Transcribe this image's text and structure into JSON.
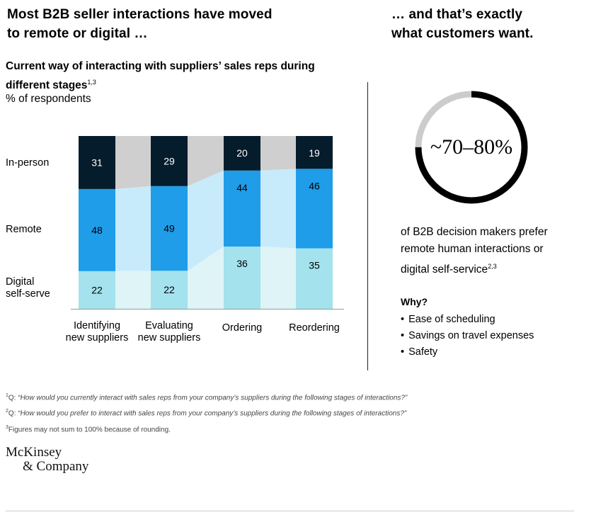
{
  "headline_left": [
    "Most B2B seller interactions have moved",
    "to remote or digital …"
  ],
  "headline_right": [
    "… and that’s exactly",
    "what customers want."
  ],
  "chart_data": {
    "type": "bar",
    "stacked": true,
    "title": "Current way of interacting with suppliers’ sales reps during different stages",
    "title_sup": "1,3",
    "subtitle": "% of respondents",
    "categories": [
      "Identifying new suppliers",
      "Evaluating new suppliers",
      "Ordering",
      "Reordering"
    ],
    "category_lines": [
      [
        "Identifying",
        "new suppliers"
      ],
      [
        "Evaluating",
        "new suppliers"
      ],
      [
        "Ordering"
      ],
      [
        "Reordering"
      ]
    ],
    "series": [
      {
        "name": "Digital self-serve",
        "name_lines": [
          "Digital",
          "self-serve"
        ],
        "values": [
          22,
          22,
          36,
          35
        ]
      },
      {
        "name": "Remote",
        "name_lines": [
          "Remote"
        ],
        "values": [
          48,
          49,
          44,
          46
        ]
      },
      {
        "name": "In-person",
        "name_lines": [
          "In-person"
        ],
        "values": [
          31,
          29,
          20,
          19
        ]
      }
    ],
    "colors": {
      "In-person": "#051c2c",
      "Remote": "#1f9de9",
      "Digital self-serve": "#a4e2ee",
      "band_in_person": "#cfcfcf",
      "band_remote": "#c8ebfb",
      "band_digital": "#dff4f7"
    },
    "grid": false,
    "legend": "left"
  },
  "stat": {
    "value": "~70–80%",
    "ring_fraction": 0.75,
    "ring_color": "#000000",
    "ring_track_color": "#cccccc",
    "lines": [
      "of B2B decision makers prefer",
      "remote human interactions or",
      "digital self-service"
    ],
    "sup": "2,3"
  },
  "why": {
    "title": "Why?",
    "items": [
      "Ease of scheduling",
      "Savings on travel expenses",
      "Safety"
    ]
  },
  "footnotes": [
    {
      "num": "1",
      "prefix": "Q: ",
      "text": "“How would you currently interact with sales reps from your company’s suppliers during the following stages of interactions?”"
    },
    {
      "num": "2",
      "prefix": "Q: ",
      "text": "“How would you prefer to interact with sales reps from your company’s suppliers during the following stages of interactions?”"
    },
    {
      "num": "3",
      "prefix": "",
      "text": "Figures may not sum to 100% because of rounding."
    }
  ],
  "logo": [
    "McKinsey",
    "& Company"
  ]
}
